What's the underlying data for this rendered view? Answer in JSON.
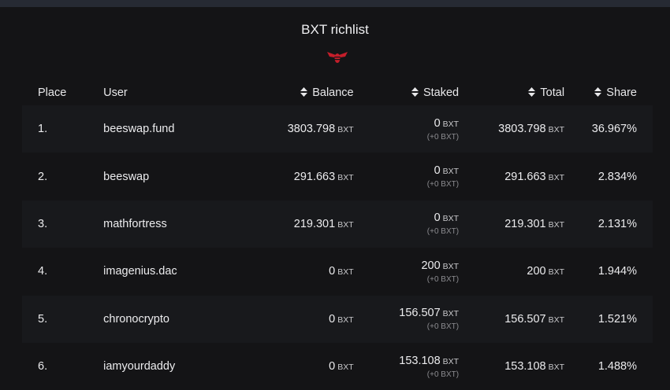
{
  "title": "BXT richlist",
  "colors": {
    "accent": "#d0202a",
    "background": "#141416"
  },
  "table": {
    "headers": {
      "place": "Place",
      "user": "User",
      "balance": "Balance",
      "staked": "Staked",
      "total": "Total",
      "share": "Share"
    },
    "unit": "BXT",
    "rows": [
      {
        "place": "1.",
        "user": "beeswap.fund",
        "balance": "3803.798",
        "staked": "0",
        "staked_sub": "(+0 BXT)",
        "total": "3803.798",
        "share": "36.967%"
      },
      {
        "place": "2.",
        "user": "beeswap",
        "balance": "291.663",
        "staked": "0",
        "staked_sub": "(+0 BXT)",
        "total": "291.663",
        "share": "2.834%"
      },
      {
        "place": "3.",
        "user": "mathfortress",
        "balance": "219.301",
        "staked": "0",
        "staked_sub": "(+0 BXT)",
        "total": "219.301",
        "share": "2.131%"
      },
      {
        "place": "4.",
        "user": "imagenius.dac",
        "balance": "0",
        "staked": "200",
        "staked_sub": "(+0 BXT)",
        "total": "200",
        "share": "1.944%"
      },
      {
        "place": "5.",
        "user": "chronocrypto",
        "balance": "0",
        "staked": "156.507",
        "staked_sub": "(+0 BXT)",
        "total": "156.507",
        "share": "1.521%"
      },
      {
        "place": "6.",
        "user": "iamyourdaddy",
        "balance": "0",
        "staked": "153.108",
        "staked_sub": "(+0 BXT)",
        "total": "153.108",
        "share": "1.488%"
      }
    ]
  }
}
